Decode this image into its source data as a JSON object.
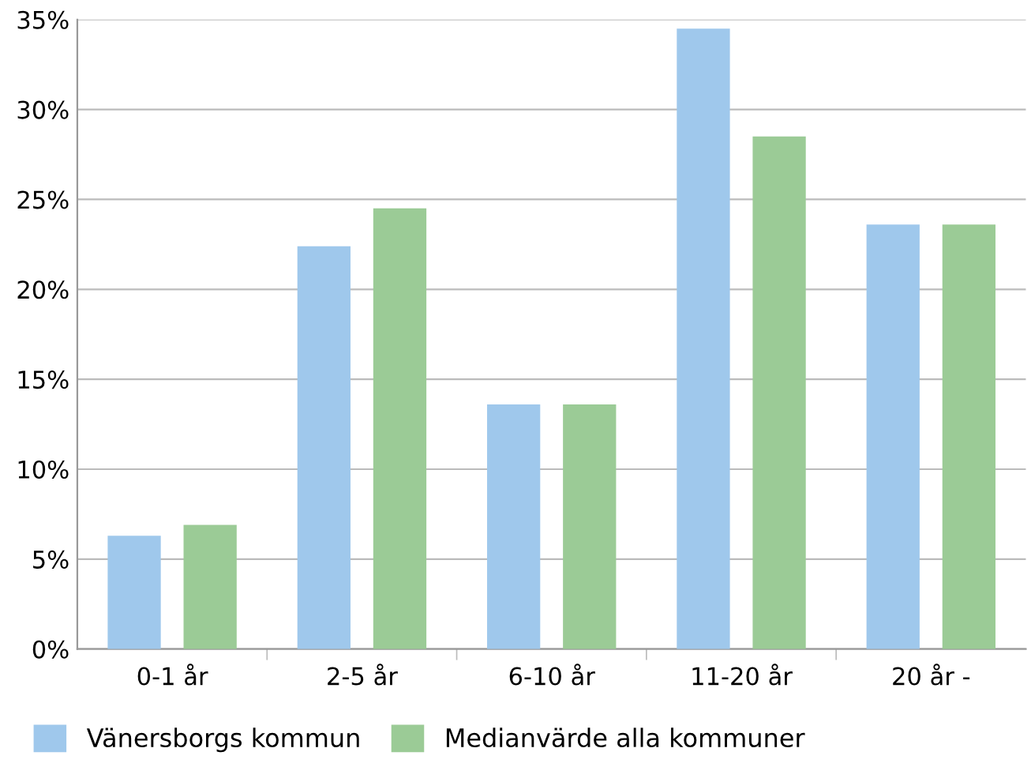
{
  "chart_data": {
    "type": "bar",
    "categories": [
      "0-1 år",
      "2-5 år",
      "6-10 år",
      "11-20 år",
      "20 år -"
    ],
    "series": [
      {
        "name": "Vänersborgs kommun",
        "color": "#9fc8ec",
        "values": [
          6.3,
          22.4,
          13.6,
          34.5,
          23.6
        ]
      },
      {
        "name": "Medianvärde alla kommuner",
        "color": "#9bcb96",
        "values": [
          6.9,
          24.5,
          13.6,
          28.5,
          23.6
        ]
      }
    ],
    "ylim": [
      0,
      35
    ],
    "yticks": [
      {
        "value": 0,
        "label": "0%"
      },
      {
        "value": 5,
        "label": "5%"
      },
      {
        "value": 10,
        "label": "10%"
      },
      {
        "value": 15,
        "label": "15%"
      },
      {
        "value": 20,
        "label": "20%"
      },
      {
        "value": 25,
        "label": "25%"
      },
      {
        "value": 30,
        "label": "30%"
      },
      {
        "value": 35,
        "label": "35%"
      }
    ],
    "grid": "y",
    "legend": "bottom"
  }
}
